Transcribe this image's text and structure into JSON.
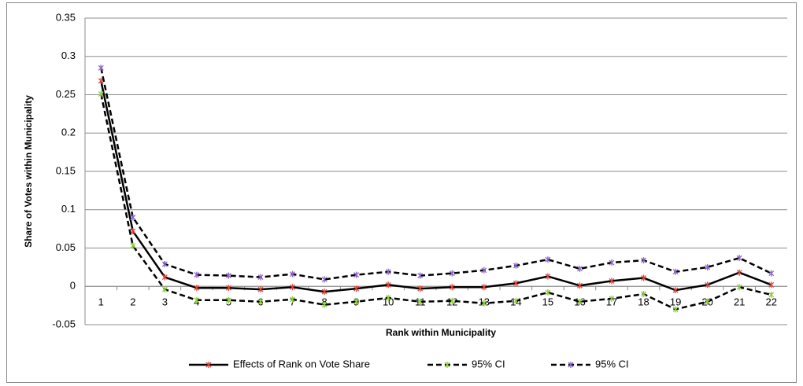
{
  "chart_data": {
    "type": "line",
    "x_label": "Rank within Municipality",
    "y_label": "Share of Votes within Municipality",
    "categories": [
      "1",
      "2",
      "3",
      "4",
      "5",
      "6",
      "7",
      "8",
      "9",
      "10",
      "11",
      "12",
      "13",
      "14",
      "15",
      "16",
      "17",
      "18",
      "19",
      "20",
      "21",
      "22"
    ],
    "series": [
      {
        "name": "Effects of Rank on Vote Share",
        "color": "#000000",
        "marker_color": "#e0443a",
        "dashed": false,
        "values": [
          0.268,
          0.072,
          0.012,
          -0.002,
          -0.002,
          -0.004,
          -0.001,
          -0.007,
          -0.003,
          0.002,
          -0.003,
          -0.001,
          -0.001,
          0.004,
          0.013,
          0.001,
          0.007,
          0.011,
          -0.005,
          0.002,
          0.018,
          0.002
        ]
      },
      {
        "name": "95% CI",
        "color": "#000000",
        "marker_color": "#8ccc3c",
        "dashed": true,
        "values": [
          0.251,
          0.053,
          -0.004,
          -0.018,
          -0.018,
          -0.02,
          -0.017,
          -0.024,
          -0.02,
          -0.015,
          -0.02,
          -0.019,
          -0.022,
          -0.019,
          -0.008,
          -0.02,
          -0.016,
          -0.01,
          -0.03,
          -0.02,
          -0.001,
          -0.011
        ]
      },
      {
        "name": "95% CI",
        "color": "#000000",
        "marker_color": "#8a64c8",
        "dashed": true,
        "values": [
          0.285,
          0.09,
          0.029,
          0.015,
          0.014,
          0.012,
          0.016,
          0.009,
          0.015,
          0.019,
          0.014,
          0.017,
          0.021,
          0.027,
          0.035,
          0.023,
          0.031,
          0.034,
          0.019,
          0.025,
          0.037,
          0.017
        ]
      }
    ],
    "ylim": [
      -0.05,
      0.35
    ],
    "yticks": [
      -0.05,
      0,
      0.05,
      0.1,
      0.15,
      0.2,
      0.25,
      0.3,
      0.35
    ],
    "grid": true,
    "legend": "bottom"
  }
}
